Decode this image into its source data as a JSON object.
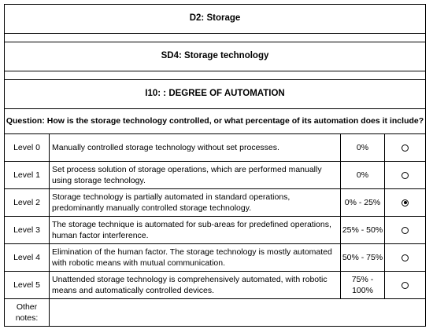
{
  "header": {
    "title": "D2: Storage",
    "subtitle": "SD4: Storage technology",
    "indicator": "I10: : DEGREE OF AUTOMATION",
    "question": "Question: How is the storage technology controlled, or what percentage of its automation does it include?"
  },
  "table": {
    "rows": [
      {
        "level": "Level 0",
        "description": "Manually controlled storage technology without set processes.",
        "range": "0%",
        "selected": false
      },
      {
        "level": "Level 1",
        "description": "Set process solution of storage operations, which are performed manually using storage technology.",
        "range": "0%",
        "selected": false
      },
      {
        "level": "Level 2",
        "description": "Storage technology is partially automated in standard operations, predominantly manually controlled storage technology.",
        "range": "0% - 25%",
        "selected": true
      },
      {
        "level": "Level 3",
        "description": "The storage technique is automated for sub-areas for predefined operations, human factor interference.",
        "range": "25% - 50%",
        "selected": false
      },
      {
        "level": "Level 4",
        "description": "Elimination of the human factor. The storage technology is mostly automated with robotic means with mutual communication.",
        "range": "50% - 75%",
        "selected": false
      },
      {
        "level": "Level 5",
        "description": "Unattended storage technology is comprehensively automated, with robotic means and automatically controlled devices.",
        "range": "75% - 100%",
        "selected": false
      }
    ]
  },
  "notes_label": "Other notes:"
}
